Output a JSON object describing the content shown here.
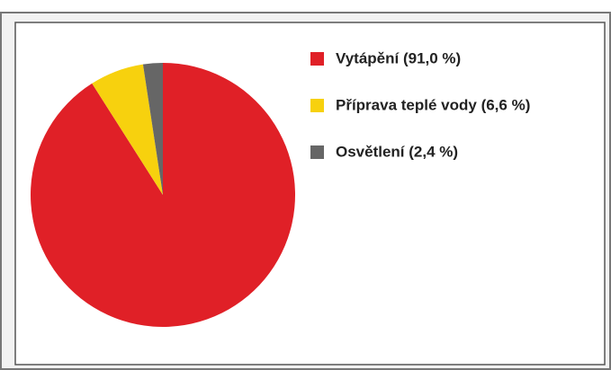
{
  "chart_data": {
    "type": "pie",
    "categories": [
      "Vytápění (91,0 %)",
      "Příprava teplé vody (6,6 %)",
      "Osvětlení (2,4 %)"
    ],
    "values": [
      91.0,
      6.6,
      2.4
    ],
    "colors": [
      "#e02027",
      "#f7d10e",
      "#666666"
    ]
  }
}
